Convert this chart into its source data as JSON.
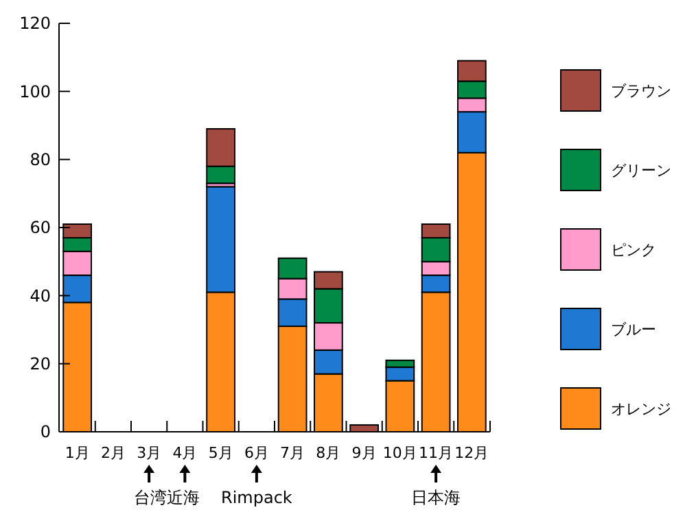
{
  "chart_data": {
    "type": "bar",
    "stacked": true,
    "categories": [
      "1月",
      "2月",
      "3月",
      "4月",
      "5月",
      "6月",
      "7月",
      "8月",
      "9月",
      "10月",
      "11月",
      "12月"
    ],
    "series": [
      {
        "name": "オレンジ",
        "color": "#ff8c1a",
        "values": [
          38,
          0,
          0,
          0,
          41,
          0,
          31,
          17,
          0,
          15,
          41,
          82
        ]
      },
      {
        "name": "ブルー",
        "color": "#1f78d1",
        "values": [
          8,
          0,
          0,
          0,
          31,
          0,
          8,
          7,
          0,
          4,
          5,
          12
        ]
      },
      {
        "name": "ピンク",
        "color": "#ff9ccc",
        "values": [
          7,
          0,
          0,
          0,
          1,
          0,
          6,
          8,
          0,
          0,
          4,
          4
        ]
      },
      {
        "name": "グリーン",
        "color": "#008a45",
        "values": [
          4,
          0,
          0,
          0,
          5,
          0,
          6,
          10,
          0,
          2,
          7,
          5
        ]
      },
      {
        "name": "ブラウン",
        "color": "#a34a40",
        "values": [
          4,
          0,
          0,
          0,
          11,
          0,
          0,
          5,
          2,
          0,
          4,
          6
        ]
      }
    ],
    "ylim": [
      0,
      120
    ],
    "yticks": [
      0,
      20,
      40,
      60,
      80,
      100,
      120
    ],
    "grid": false,
    "legend": "right",
    "annotations": [
      "台湾近海",
      "Rimpack",
      "日本海"
    ]
  }
}
